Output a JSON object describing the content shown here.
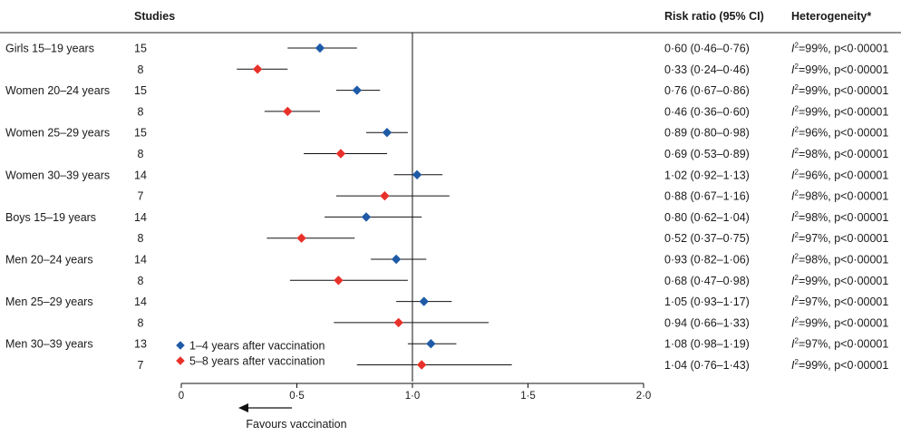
{
  "chart_data": {
    "type": "forest",
    "headers": {
      "studies": "Studies",
      "risk_ratio": "Risk ratio (95% CI)",
      "heterogeneity": "Heterogeneity*"
    },
    "reference_value": 1.0,
    "xlim": [
      0,
      2.0
    ],
    "x_ticks": [
      0,
      0.5,
      1.0,
      1.5,
      2.0
    ],
    "x_tick_labels": [
      "0",
      "0·5",
      "1·0",
      "1·5",
      "2·0"
    ],
    "favours_label": "Favours vaccination",
    "legend": [
      {
        "name": "1–4 years after vaccination",
        "color": "#1f5aa6"
      },
      {
        "name": "5–8 years after vaccination",
        "color": "#e8312a"
      }
    ],
    "groups": [
      "Girls 15–19 years",
      "Women 20–24 years",
      "Women 25–29 years",
      "Women 30–39 years",
      "Boys 15–19 years",
      "Men 20–24 years",
      "Men 25–29 years",
      "Men 30–39 years"
    ],
    "rows": [
      {
        "group": 0,
        "series": 0,
        "studies": "15",
        "rr": 0.6,
        "lo": 0.46,
        "hi": 0.76,
        "ci_text": "0·60 (0·46–0·76)",
        "i2": "=99%, p<0·00001"
      },
      {
        "group": 0,
        "series": 1,
        "studies": "8",
        "rr": 0.33,
        "lo": 0.24,
        "hi": 0.46,
        "ci_text": "0·33 (0·24–0·46)",
        "i2": "=99%, p<0·00001"
      },
      {
        "group": 1,
        "series": 0,
        "studies": "15",
        "rr": 0.76,
        "lo": 0.67,
        "hi": 0.86,
        "ci_text": "0·76 (0·67–0·86)",
        "i2": "=99%, p<0·00001"
      },
      {
        "group": 1,
        "series": 1,
        "studies": "8",
        "rr": 0.46,
        "lo": 0.36,
        "hi": 0.6,
        "ci_text": "0·46 (0·36–0·60)",
        "i2": "=99%, p<0·00001"
      },
      {
        "group": 2,
        "series": 0,
        "studies": "15",
        "rr": 0.89,
        "lo": 0.8,
        "hi": 0.98,
        "ci_text": "0·89 (0·80–0·98)",
        "i2": "=96%, p<0·00001"
      },
      {
        "group": 2,
        "series": 1,
        "studies": "8",
        "rr": 0.69,
        "lo": 0.53,
        "hi": 0.89,
        "ci_text": "0·69 (0·53–0·89)",
        "i2": "=98%, p<0·00001"
      },
      {
        "group": 3,
        "series": 0,
        "studies": "14",
        "rr": 1.02,
        "lo": 0.92,
        "hi": 1.13,
        "ci_text": "1·02 (0·92–1·13)",
        "i2": "=96%, p<0·00001"
      },
      {
        "group": 3,
        "series": 1,
        "studies": "7",
        "rr": 0.88,
        "lo": 0.67,
        "hi": 1.16,
        "ci_text": "0·88 (0·67–1·16)",
        "i2": "=98%, p<0·00001"
      },
      {
        "group": 4,
        "series": 0,
        "studies": "14",
        "rr": 0.8,
        "lo": 0.62,
        "hi": 1.04,
        "ci_text": "0·80 (0·62–1·04)",
        "i2": "=98%, p<0·00001"
      },
      {
        "group": 4,
        "series": 1,
        "studies": "8",
        "rr": 0.52,
        "lo": 0.37,
        "hi": 0.75,
        "ci_text": "0·52 (0·37–0·75)",
        "i2": "=97%, p<0·00001"
      },
      {
        "group": 5,
        "series": 0,
        "studies": "14",
        "rr": 0.93,
        "lo": 0.82,
        "hi": 1.06,
        "ci_text": "0·93 (0·82–1·06)",
        "i2": "=98%, p<0·00001"
      },
      {
        "group": 5,
        "series": 1,
        "studies": "8",
        "rr": 0.68,
        "lo": 0.47,
        "hi": 0.98,
        "ci_text": "0·68 (0·47–0·98)",
        "i2": "=99%, p<0·00001"
      },
      {
        "group": 6,
        "series": 0,
        "studies": "14",
        "rr": 1.05,
        "lo": 0.93,
        "hi": 1.17,
        "ci_text": "1·05 (0·93–1·17)",
        "i2": "=97%, p<0·00001"
      },
      {
        "group": 6,
        "series": 1,
        "studies": "8",
        "rr": 0.94,
        "lo": 0.66,
        "hi": 1.33,
        "ci_text": "0·94 (0·66–1·33)",
        "i2": "=99%, p<0·00001"
      },
      {
        "group": 7,
        "series": 0,
        "studies": "13",
        "rr": 1.08,
        "lo": 0.98,
        "hi": 1.19,
        "ci_text": "1·08 (0·98–1·19)",
        "i2": "=97%, p<0·00001"
      },
      {
        "group": 7,
        "series": 1,
        "studies": "7",
        "rr": 1.04,
        "lo": 0.76,
        "hi": 1.43,
        "ci_text": "1·04 (0·76–1·43)",
        "i2": "=99%, p<0·00001"
      }
    ]
  }
}
